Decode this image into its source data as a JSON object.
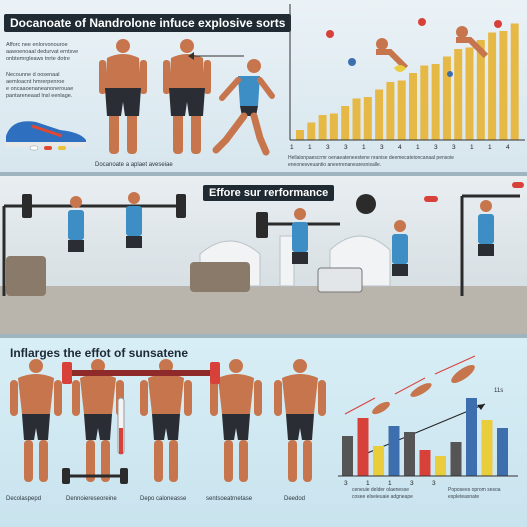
{
  "panel1": {
    "title": "Docanoate of Nandrolone infuce explosive sorts",
    "text_a": "Afforc nee enlorvonouroe\naawoenoaal dedurvat erntsve\nonbtemrgleaws tnrte dotre",
    "text_b": "Necounne d oosenaal\naemloacnt hmrerpenroe\ne oncaaoenaneanonerouae\npantareneaad lnsl eenlage.",
    "caption": "Docanoate a aplaet aveseiae",
    "ticks": [
      "1",
      "1",
      "3",
      "3",
      "1",
      "3",
      "4",
      "1",
      "3",
      "3",
      "1",
      "1",
      "4"
    ],
    "bottom_text": "Hellalonpaescrmr oenaeateneestene nranise deemecateioncanaal pensoie\neneonesveuantio aneerrenanearesnisalle."
  },
  "panel2": {
    "title": "Effore sur rerformance"
  },
  "panel3": {
    "title": "Inflarges the effot of sunsatene",
    "side_label": "11s",
    "labels": [
      "Decolaspepd",
      "Dennoiereseoreine",
      "Depo caloneasse",
      "sentsoeatrnetase",
      "Deedod"
    ],
    "chart_ticks": [
      "3",
      "1",
      "1",
      "3",
      "3"
    ],
    "chart_caption": "ceneuie   delder olaenesse\ncosee  elseieuaie  adgneape",
    "chart_caption_right": "Poposees oprom sesoa\nespleteasnate"
  },
  "colors": {
    "gold": "#e6b845",
    "red": "#d8413a",
    "blue": "#3d6fae",
    "yellow": "#e9cd3c",
    "skin": "#c7754d",
    "shorts": "#2a2d33"
  }
}
